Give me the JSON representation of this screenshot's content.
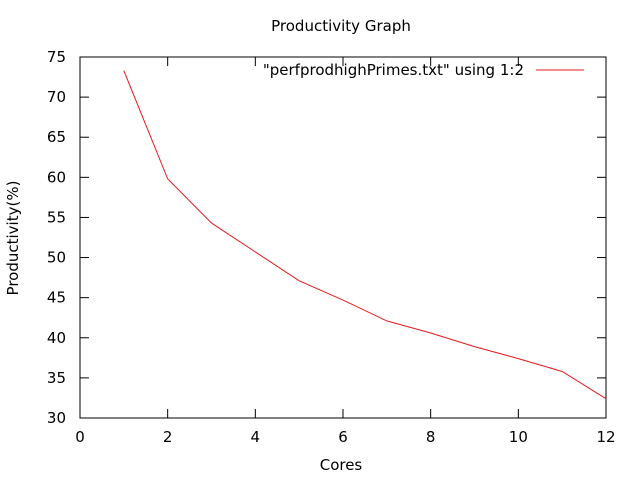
{
  "chart_data": {
    "type": "line",
    "title": "Productivity Graph",
    "xlabel": "Cores",
    "ylabel": "Productivity(%)",
    "xlim": [
      0,
      12
    ],
    "ylim": [
      30,
      75
    ],
    "x_ticks": [
      0,
      2,
      4,
      6,
      8,
      10,
      12
    ],
    "y_ticks": [
      30,
      35,
      40,
      45,
      50,
      55,
      60,
      65,
      70,
      75
    ],
    "grid": false,
    "legend_position": "top-right",
    "series": [
      {
        "name": "\"perfprodhighPrimes.txt\" using 1:2",
        "color": "#e41a1c",
        "x": [
          1,
          2,
          3,
          4,
          5,
          6,
          7,
          8,
          9,
          10,
          11,
          12
        ],
        "y": [
          73.3,
          59.8,
          54.3,
          50.7,
          47.1,
          44.7,
          42.1,
          40.6,
          38.9,
          37.4,
          35.8,
          32.4
        ]
      }
    ]
  }
}
